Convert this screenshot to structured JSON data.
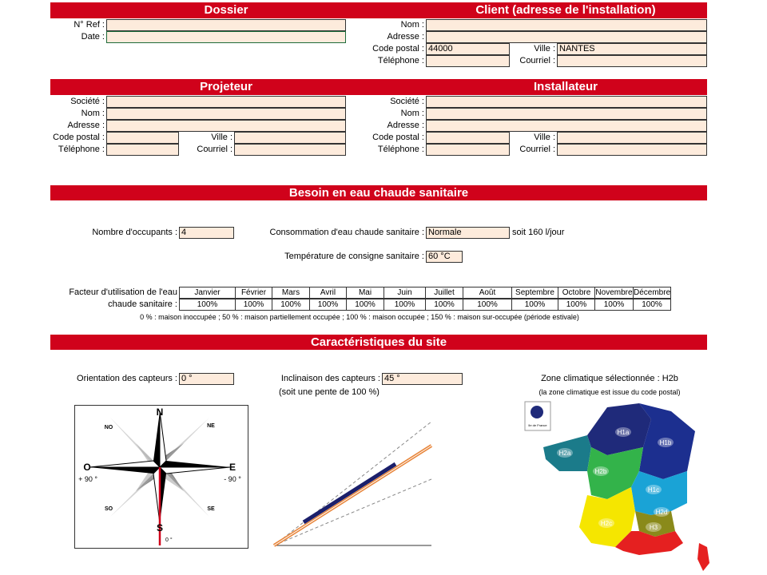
{
  "dossier": {
    "title": "Dossier",
    "ref_label": "N° Ref :",
    "date_label": "Date :"
  },
  "client": {
    "title": "Client (adresse de l'installation)",
    "nom_label": "Nom :",
    "adresse_label": "Adresse :",
    "cp_label": "Code postal :",
    "cp": "44000",
    "ville_label": "Ville :",
    "ville": "NANTES",
    "tel_label": "Téléphone :",
    "courriel_label": "Courriel :"
  },
  "projeteur": {
    "title": "Projeteur",
    "societe_label": "Société :",
    "nom_label": "Nom :",
    "adresse_label": "Adresse :",
    "cp_label": "Code postal :",
    "ville_label": "Ville :",
    "tel_label": "Téléphone :",
    "courriel_label": "Courriel :"
  },
  "installateur": {
    "title": "Installateur",
    "societe_label": "Société :",
    "nom_label": "Nom :",
    "adresse_label": "Adresse :",
    "cp_label": "Code postal :",
    "ville_label": "Ville :",
    "tel_label": "Téléphone :",
    "courriel_label": "Courriel :"
  },
  "besoin": {
    "title": "Besoin en eau chaude sanitaire",
    "occupants_label": "Nombre d'occupants :",
    "occupants": "4",
    "conso_label": "Consommation d'eau chaude sanitaire :",
    "conso": "Normale",
    "conso_note": "soit 160 l/jour",
    "temp_label": "Température de consigne sanitaire :",
    "temp": "60 °C",
    "facteur_label_1": "Facteur d'utilisation de l'eau",
    "facteur_label_2": "chaude sanitaire :",
    "months": [
      "Janvier",
      "Février",
      "Mars",
      "Avril",
      "Mai",
      "Juin",
      "Juillet",
      "Août",
      "Septembre",
      "Octobre",
      "Novembre",
      "Décembre"
    ],
    "factors": [
      "100%",
      "100%",
      "100%",
      "100%",
      "100%",
      "100%",
      "100%",
      "100%",
      "100%",
      "100%",
      "100%",
      "100%"
    ],
    "note": "0 % : maison inoccupée ; 50 % : maison partiellement occupée ; 100 % : maison occupée ; 150 % : maison sur-occupée (période estivale)"
  },
  "site": {
    "title": "Caractéristiques du site",
    "orientation_label": "Orientation des capteurs :",
    "orientation": "0 °",
    "inclinaison_label": "Inclinaison des capteurs :",
    "inclinaison": "45 °",
    "pente_note": "(soit une pente de 100 %)",
    "zone_title": "Zone climatique sélectionnée : H2b",
    "zone_note": "(la zone climatique est issue du code postal)",
    "compass": {
      "n": "N",
      "ne": "NE",
      "e": "E",
      "se": "SE",
      "s": "S",
      "so": "SO",
      "o": "O",
      "no": "NO",
      "west_angle": "+ 90 °",
      "east_angle": "- 90 °",
      "south_angle": "0 °"
    },
    "map": {
      "inset": "Ile de France",
      "zones": [
        "H1a",
        "H1b",
        "H1c",
        "H2a",
        "H2b",
        "H2c",
        "H2d",
        "H3"
      ]
    }
  }
}
